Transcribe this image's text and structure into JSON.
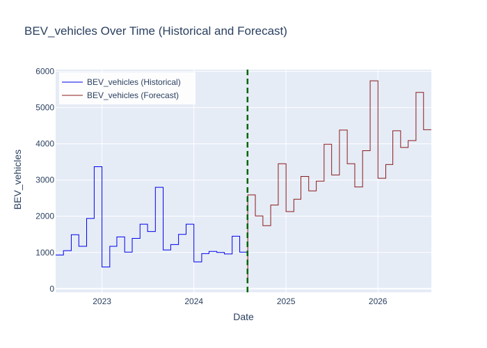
{
  "chart_data": {
    "type": "line",
    "title": "BEV_vehicles Over Time (Historical and Forecast)",
    "xlabel": "Date",
    "ylabel": "BEV_vehicles",
    "x_range": [
      "2022-07-01",
      "2026-08-01"
    ],
    "ylim": [
      -100,
      6050
    ],
    "x_ticks": [
      {
        "date": "2023-01-01",
        "label": "2023"
      },
      {
        "date": "2024-01-01",
        "label": "2024"
      },
      {
        "date": "2025-01-01",
        "label": "2025"
      },
      {
        "date": "2026-01-01",
        "label": "2026"
      }
    ],
    "y_ticks": [
      0,
      1000,
      2000,
      3000,
      4000,
      5000,
      6000
    ],
    "grid": true,
    "legend_position": "top-left",
    "split_date": "2024-08-01",
    "series": [
      {
        "name": "BEV_vehicles (Historical)",
        "color": "#0000ee",
        "line_shape": "step",
        "x": [
          "2022-07-01",
          "2022-08-01",
          "2022-09-01",
          "2022-10-01",
          "2022-11-01",
          "2022-12-01",
          "2023-01-01",
          "2023-02-01",
          "2023-03-01",
          "2023-04-01",
          "2023-05-01",
          "2023-06-01",
          "2023-07-01",
          "2023-08-01",
          "2023-09-01",
          "2023-10-01",
          "2023-11-01",
          "2023-12-01",
          "2024-01-01",
          "2024-02-01",
          "2024-03-01",
          "2024-04-01",
          "2024-05-01",
          "2024-06-01",
          "2024-07-01",
          "2024-08-01"
        ],
        "y": [
          930,
          1050,
          1490,
          1170,
          1940,
          3370,
          600,
          1170,
          1430,
          1010,
          1390,
          1780,
          1580,
          2800,
          1070,
          1220,
          1500,
          1780,
          740,
          970,
          1030,
          1000,
          960,
          1450,
          1010,
          1010
        ]
      },
      {
        "name": "BEV_vehicles (Forecast)",
        "color": "#8b1a1a",
        "line_shape": "step",
        "x": [
          "2024-08-01",
          "2024-08-02",
          "2024-09-01",
          "2024-10-01",
          "2024-11-01",
          "2024-12-01",
          "2025-01-01",
          "2025-02-01",
          "2025-03-01",
          "2025-04-01",
          "2025-05-01",
          "2025-06-01",
          "2025-07-01",
          "2025-08-01",
          "2025-09-01",
          "2025-10-01",
          "2025-11-01",
          "2025-12-01",
          "2026-01-01",
          "2026-02-01",
          "2026-03-01",
          "2026-04-01",
          "2026-05-01",
          "2026-06-01",
          "2026-07-01",
          "2026-08-01"
        ],
        "y": [
          260,
          2590,
          2010,
          1740,
          2310,
          3450,
          2130,
          2470,
          3100,
          2700,
          2970,
          3990,
          3140,
          4380,
          3450,
          2810,
          3810,
          5740,
          3050,
          3430,
          4360,
          3900,
          4090,
          5420,
          4390,
          4390
        ]
      }
    ]
  }
}
